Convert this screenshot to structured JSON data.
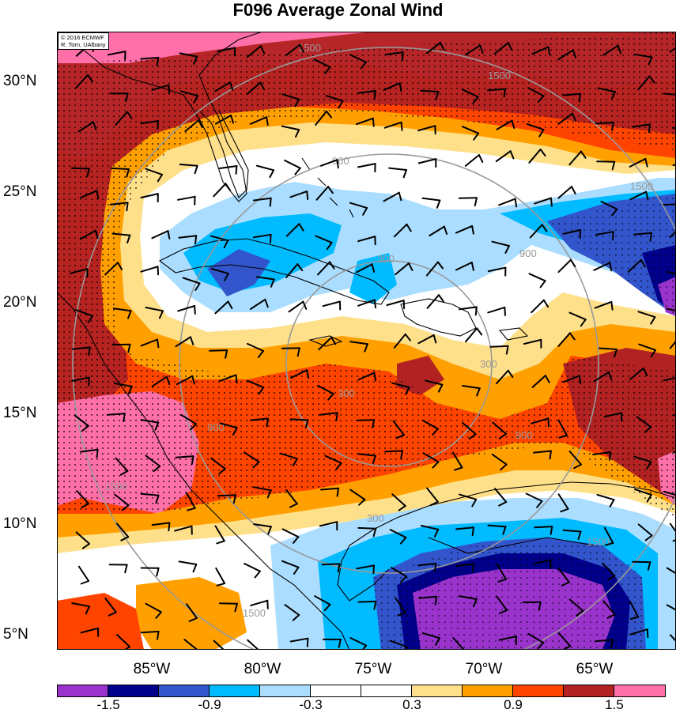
{
  "title": "F096 Average Zonal Wind",
  "credit": {
    "line1": "© 2016 ECMWF",
    "line2": "R. Torn, UAlbany"
  },
  "lat_labels": [
    "30°N",
    "25°N",
    "20°N",
    "15°N",
    "10°N",
    "5°N"
  ],
  "lon_labels": [
    "85°W",
    "80°W",
    "75°W",
    "70°W",
    "65°W"
  ],
  "colorbar": {
    "colors": [
      "#9933cc",
      "#00008b",
      "#3355cc",
      "#00bbff",
      "#aaddff",
      "#ffffff",
      "#ffffff",
      "#ffe08a",
      "#ffa000",
      "#ff4400",
      "#b22222",
      "#ff6fa8"
    ],
    "labels": [
      "-1.5",
      "-0.9",
      "-0.3",
      "0.3",
      "0.9",
      "1.5"
    ]
  },
  "range_ring_labels": [
    "300",
    "300",
    "300",
    "300",
    "900",
    "900",
    "900",
    "900",
    "1500",
    "1500",
    "1500",
    "1500",
    "1500",
    "1500"
  ]
}
